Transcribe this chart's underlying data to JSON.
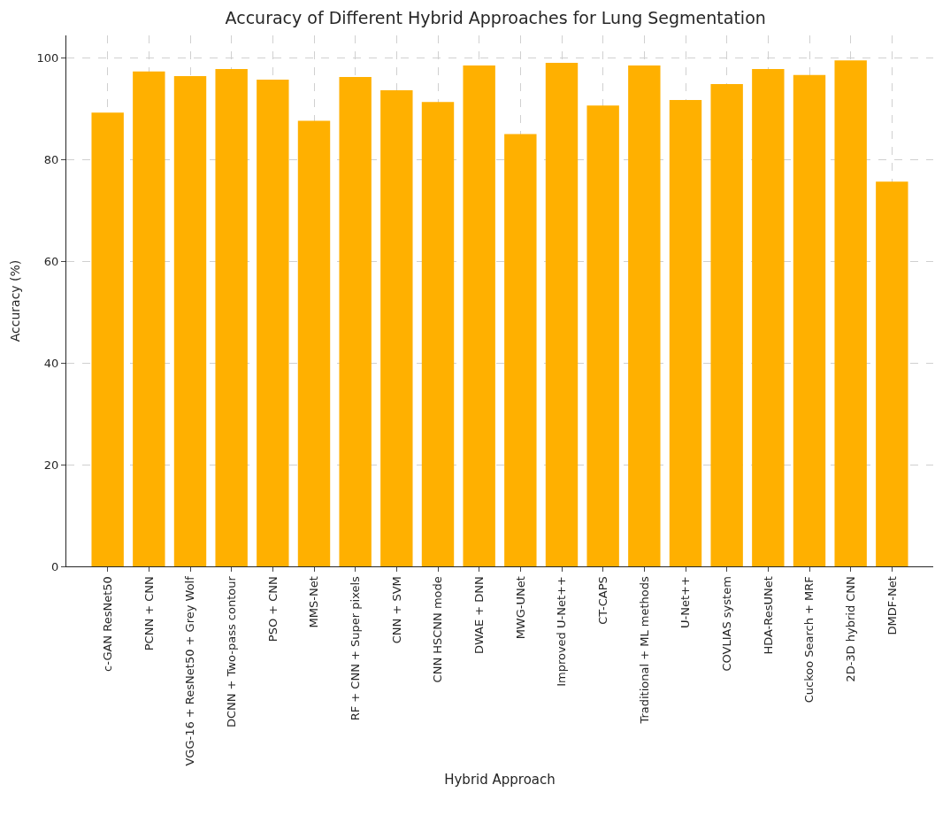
{
  "chart_data": {
    "type": "bar",
    "title": "Accuracy of Different Hybrid Approaches for Lung Segmentation",
    "xlabel": "Hybrid Approach",
    "ylabel": "Accuracy (%)",
    "categories": [
      "c-GAN ResNet50",
      "PCNN + CNN",
      "VGG-16 + ResNet50 + Grey Wolf",
      "DCNN + Two-pass contour",
      "PSO + CNN",
      "MMS-Net",
      "RF + CNN + Super pixels",
      "CNN + SVM",
      "CNN HSCNN mode",
      "DWAE + DNN",
      "MWG-UNet",
      "Improved U-Net++",
      "CT-CAPS",
      "Traditional + ML methods",
      "U-Net++",
      "COVLIAS system",
      "HDA-ResUNet",
      "Cuckoo Search + MRF",
      "2D-3D hybrid CNN",
      "DMDF-Net"
    ],
    "values": [
      89.3,
      97.4,
      96.5,
      97.9,
      95.8,
      87.7,
      96.3,
      93.7,
      91.4,
      98.6,
      85.1,
      99.1,
      90.7,
      98.6,
      91.8,
      94.9,
      97.9,
      96.7,
      99.6,
      75.7
    ],
    "color": "#ffb000",
    "ylim": [
      0,
      104.5
    ],
    "yticks": [
      0,
      20,
      40,
      60,
      80,
      100
    ],
    "grid": true
  }
}
